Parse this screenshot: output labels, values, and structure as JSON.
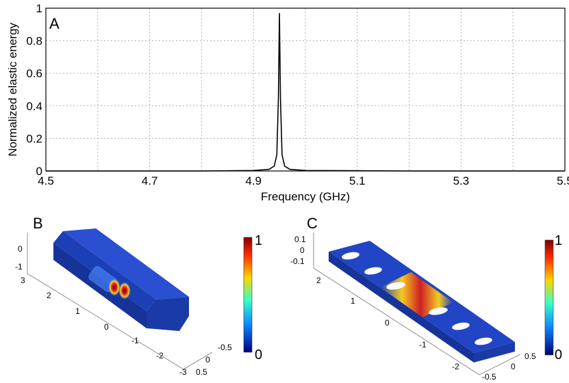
{
  "chart_data": [
    {
      "panel": "A",
      "type": "line",
      "xlabel": "Frequency (GHz)",
      "ylabel": "Normalized elastic energy",
      "xlim": [
        4.5,
        5.5
      ],
      "ylim": [
        0,
        1
      ],
      "xticks": [
        "4.5",
        "4.7",
        "4.9",
        "5.1",
        "5.3",
        "5.5"
      ],
      "yticks": [
        "0",
        "0.2",
        "0.4",
        "0.6",
        "0.8",
        "1"
      ],
      "grid": true,
      "series": [
        {
          "color": "#000000",
          "x": [
            4.5,
            4.8,
            4.9,
            4.93,
            4.94,
            4.945,
            4.948,
            4.95,
            4.952,
            4.955,
            4.96,
            4.97,
            5.0,
            5.2,
            5.5
          ],
          "y": [
            0.0,
            0.0,
            0.003,
            0.01,
            0.03,
            0.1,
            0.45,
            0.97,
            0.45,
            0.1,
            0.03,
            0.01,
            0.003,
            0.0,
            0.0
          ]
        }
      ]
    },
    {
      "panel": "B",
      "type": "heatmap",
      "colorbar": {
        "max_label": "1",
        "min_label": "0"
      },
      "zticks": [
        "0",
        "-1"
      ],
      "yticks": [
        "3",
        "2",
        "1",
        "0",
        "-1",
        "-2",
        "-3"
      ],
      "xticks": [
        "-0.5",
        "0",
        "0.5"
      ]
    },
    {
      "panel": "C",
      "type": "heatmap",
      "colorbar": {
        "max_label": "1",
        "min_label": "0"
      },
      "zticks": [
        "0.1",
        "0",
        "-0.1"
      ],
      "yticks": [
        "2",
        "1",
        "0",
        "-1",
        "-2"
      ],
      "xticks": [
        "0.5",
        "0",
        "-0.5"
      ]
    }
  ],
  "colors": {
    "beam_base": "#1b3fb5",
    "hot": "#c81e1e",
    "grid": "#b0b0b0"
  }
}
